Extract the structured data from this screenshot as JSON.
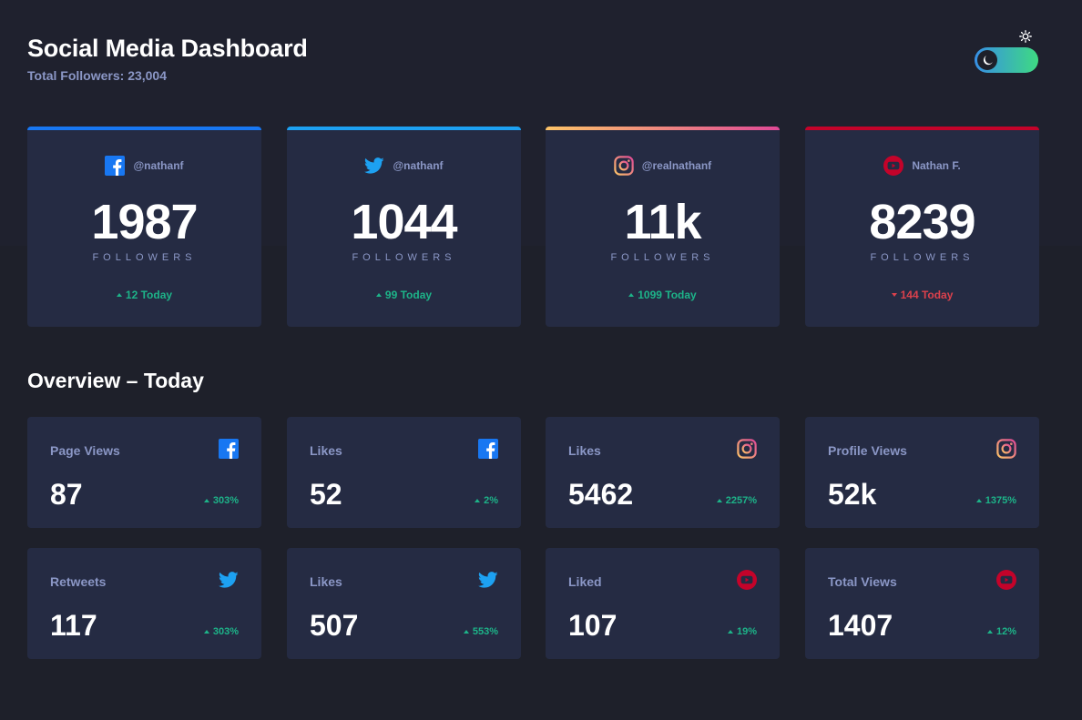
{
  "header": {
    "title": "Social Media Dashboard",
    "subtitle": "Total Followers: 23,004"
  },
  "theme_toggle": {
    "label": "Dark Mode"
  },
  "colors": {
    "facebook": "#1877f2",
    "twitter": "#1da1f2",
    "youtube": "#c4032a",
    "up": "#1db489",
    "down": "#dc414c"
  },
  "follower_cards": [
    {
      "platform": "facebook",
      "handle": "@nathanf",
      "count": "1987",
      "label": "FOLLOWERS",
      "delta": "12 Today",
      "trend": "up"
    },
    {
      "platform": "twitter",
      "handle": "@nathanf",
      "count": "1044",
      "label": "FOLLOWERS",
      "delta": "99 Today",
      "trend": "up"
    },
    {
      "platform": "instagram",
      "handle": "@realnathanf",
      "count": "11k",
      "label": "FOLLOWERS",
      "delta": "1099 Today",
      "trend": "up"
    },
    {
      "platform": "youtube",
      "handle": "Nathan F.",
      "count": "8239",
      "label": "FOLLOWERS",
      "delta": "144 Today",
      "trend": "down"
    }
  ],
  "overview": {
    "title": "Overview – Today",
    "items": [
      {
        "label": "Page Views",
        "platform": "facebook",
        "value": "87",
        "delta": "303%",
        "trend": "up"
      },
      {
        "label": "Likes",
        "platform": "facebook",
        "value": "52",
        "delta": "2%",
        "trend": "up"
      },
      {
        "label": "Likes",
        "platform": "instagram",
        "value": "5462",
        "delta": "2257%",
        "trend": "up"
      },
      {
        "label": "Profile Views",
        "platform": "instagram",
        "value": "52k",
        "delta": "1375%",
        "trend": "up"
      },
      {
        "label": "Retweets",
        "platform": "twitter",
        "value": "117",
        "delta": "303%",
        "trend": "up"
      },
      {
        "label": "Likes",
        "platform": "twitter",
        "value": "507",
        "delta": "553%",
        "trend": "up"
      },
      {
        "label": "Liked",
        "platform": "youtube",
        "value": "107",
        "delta": "19%",
        "trend": "up"
      },
      {
        "label": "Total Views",
        "platform": "youtube",
        "value": "1407",
        "delta": "12%",
        "trend": "up"
      }
    ]
  }
}
